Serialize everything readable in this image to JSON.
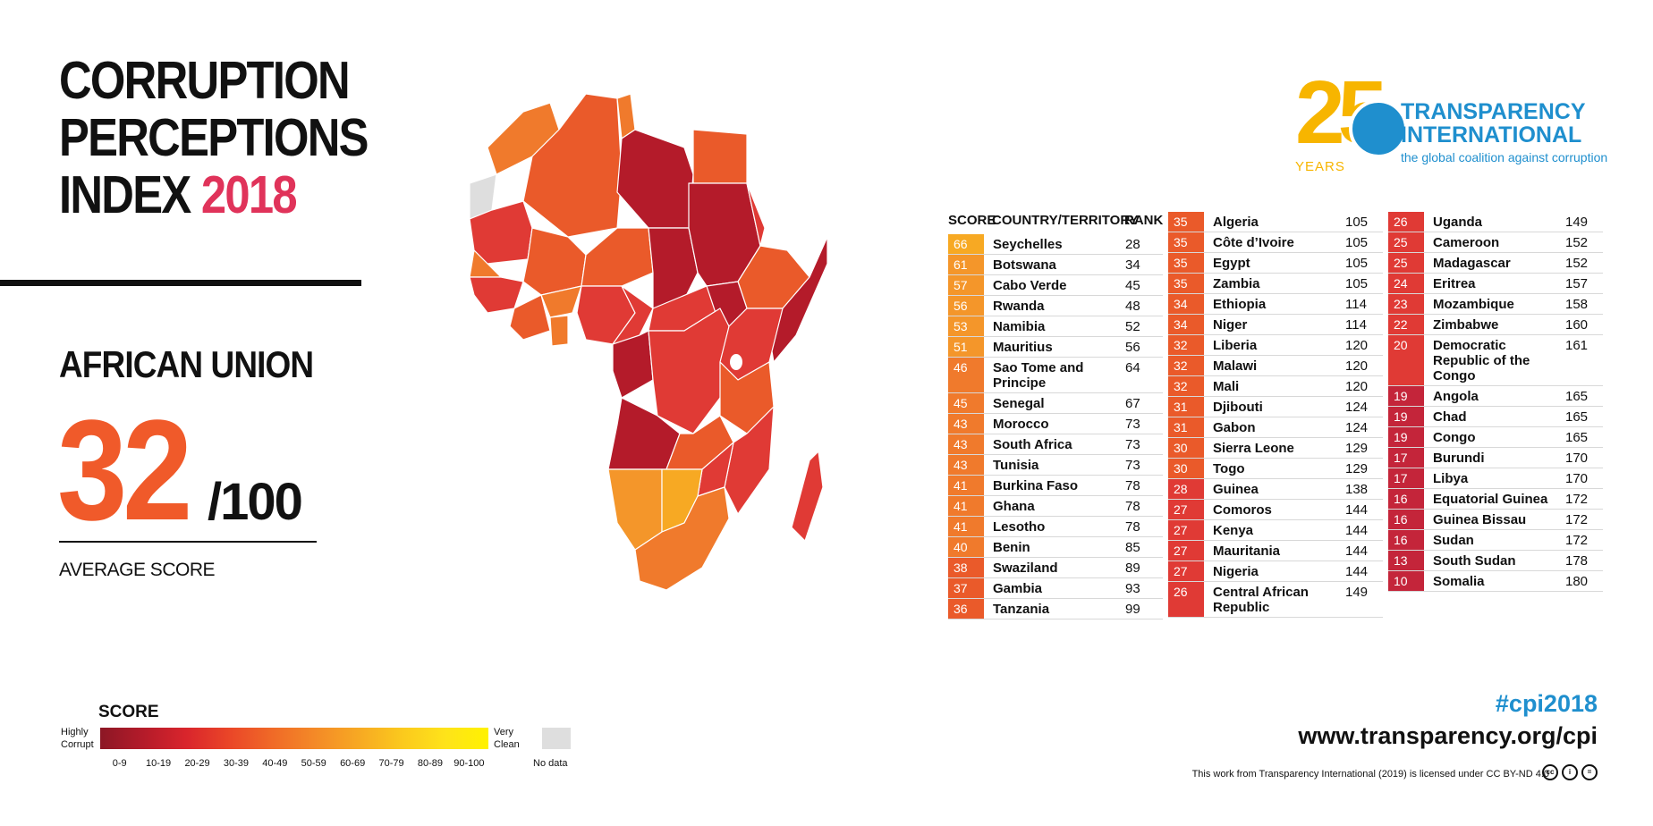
{
  "header": {
    "title_line1": "CORRUPTION",
    "title_line2": "PERCEPTIONS",
    "title_line3": "INDEX",
    "year": "2018"
  },
  "region": {
    "name": "AFRICAN UNION",
    "score": "32",
    "out_of": "/100",
    "label": "AVERAGE SCORE"
  },
  "logo": {
    "anniversary": "25",
    "years": "YEARS",
    "name_line1": "TRANSPARENCY",
    "name_line2": "INTERNATIONAL",
    "tagline": "the global coalition against corruption"
  },
  "table_headers": {
    "score": "SCORE",
    "country": "COUNTRY/TERRITORY",
    "rank": "RANK"
  },
  "table": {
    "columns": [
      [
        {
          "score": "66",
          "country": "Seychelles",
          "rank": "28",
          "color": "#f7a923"
        },
        {
          "score": "61",
          "country": "Botswana",
          "rank": "34",
          "color": "#f4962a"
        },
        {
          "score": "57",
          "country": "Cabo Verde",
          "rank": "45",
          "color": "#f4962a"
        },
        {
          "score": "56",
          "country": "Rwanda",
          "rank": "48",
          "color": "#f4962a"
        },
        {
          "score": "53",
          "country": "Namibia",
          "rank": "52",
          "color": "#f4962a"
        },
        {
          "score": "51",
          "country": "Mauritius",
          "rank": "56",
          "color": "#f4962a"
        },
        {
          "score": "46",
          "country": "Sao Tome and Principe",
          "rank": "64",
          "color": "#f07a2c"
        },
        {
          "score": "45",
          "country": "Senegal",
          "rank": "67",
          "color": "#f07a2c"
        },
        {
          "score": "43",
          "country": "Morocco",
          "rank": "73",
          "color": "#f07a2c"
        },
        {
          "score": "43",
          "country": "South Africa",
          "rank": "73",
          "color": "#f07a2c"
        },
        {
          "score": "43",
          "country": "Tunisia",
          "rank": "73",
          "color": "#f07a2c"
        },
        {
          "score": "41",
          "country": "Burkina Faso",
          "rank": "78",
          "color": "#f07a2c"
        },
        {
          "score": "41",
          "country": "Ghana",
          "rank": "78",
          "color": "#f07a2c"
        },
        {
          "score": "41",
          "country": "Lesotho",
          "rank": "78",
          "color": "#f07a2c"
        },
        {
          "score": "40",
          "country": "Benin",
          "rank": "85",
          "color": "#f07a2c"
        },
        {
          "score": "38",
          "country": "Swaziland",
          "rank": "89",
          "color": "#ea5a2a"
        },
        {
          "score": "37",
          "country": "Gambia",
          "rank": "93",
          "color": "#ea5a2a"
        },
        {
          "score": "36",
          "country": "Tanzania",
          "rank": "99",
          "color": "#ea5a2a"
        }
      ],
      [
        {
          "score": "35",
          "country": "Algeria",
          "rank": "105",
          "color": "#ea5a2a"
        },
        {
          "score": "35",
          "country": "Côte d’Ivoire",
          "rank": "105",
          "color": "#ea5a2a"
        },
        {
          "score": "35",
          "country": "Egypt",
          "rank": "105",
          "color": "#ea5a2a"
        },
        {
          "score": "35",
          "country": "Zambia",
          "rank": "105",
          "color": "#ea5a2a"
        },
        {
          "score": "34",
          "country": "Ethiopia",
          "rank": "114",
          "color": "#ea5a2a"
        },
        {
          "score": "34",
          "country": "Niger",
          "rank": "114",
          "color": "#ea5a2a"
        },
        {
          "score": "32",
          "country": "Liberia",
          "rank": "120",
          "color": "#ea5a2a"
        },
        {
          "score": "32",
          "country": "Malawi",
          "rank": "120",
          "color": "#ea5a2a"
        },
        {
          "score": "32",
          "country": "Mali",
          "rank": "120",
          "color": "#ea5a2a"
        },
        {
          "score": "31",
          "country": "Djibouti",
          "rank": "124",
          "color": "#ea5a2a"
        },
        {
          "score": "31",
          "country": "Gabon",
          "rank": "124",
          "color": "#ea5a2a"
        },
        {
          "score": "30",
          "country": "Sierra Leone",
          "rank": "129",
          "color": "#ea5a2a"
        },
        {
          "score": "30",
          "country": "Togo",
          "rank": "129",
          "color": "#ea5a2a"
        },
        {
          "score": "28",
          "country": "Guinea",
          "rank": "138",
          "color": "#e03a35"
        },
        {
          "score": "27",
          "country": "Comoros",
          "rank": "144",
          "color": "#e03a35"
        },
        {
          "score": "27",
          "country": "Kenya",
          "rank": "144",
          "color": "#e03a35"
        },
        {
          "score": "27",
          "country": "Mauritania",
          "rank": "144",
          "color": "#e03a35"
        },
        {
          "score": "27",
          "country": "Nigeria",
          "rank": "144",
          "color": "#e03a35"
        },
        {
          "score": "26",
          "country": "Central African Republic",
          "rank": "149",
          "color": "#e03a35"
        }
      ],
      [
        {
          "score": "26",
          "country": "Uganda",
          "rank": "149",
          "color": "#e03a35"
        },
        {
          "score": "25",
          "country": "Cameroon",
          "rank": "152",
          "color": "#e03a35"
        },
        {
          "score": "25",
          "country": "Madagascar",
          "rank": "152",
          "color": "#e03a35"
        },
        {
          "score": "24",
          "country": "Eritrea",
          "rank": "157",
          "color": "#e03a35"
        },
        {
          "score": "23",
          "country": "Mozambique",
          "rank": "158",
          "color": "#e03a35"
        },
        {
          "score": "22",
          "country": "Zimbabwe",
          "rank": "160",
          "color": "#e03a35"
        },
        {
          "score": "20",
          "country": "Democratic Republic of the Congo",
          "rank": "161",
          "color": "#e03a35"
        },
        {
          "score": "19",
          "country": "Angola",
          "rank": "165",
          "color": "#c4253a"
        },
        {
          "score": "19",
          "country": "Chad",
          "rank": "165",
          "color": "#c4253a"
        },
        {
          "score": "19",
          "country": "Congo",
          "rank": "165",
          "color": "#c4253a"
        },
        {
          "score": "17",
          "country": "Burundi",
          "rank": "170",
          "color": "#c4253a"
        },
        {
          "score": "17",
          "country": "Libya",
          "rank": "170",
          "color": "#c4253a"
        },
        {
          "score": "16",
          "country": "Equatorial Guinea",
          "rank": "172",
          "color": "#c4253a"
        },
        {
          "score": "16",
          "country": "Guinea Bissau",
          "rank": "172",
          "color": "#c4253a"
        },
        {
          "score": "16",
          "country": "Sudan",
          "rank": "172",
          "color": "#c4253a"
        },
        {
          "score": "13",
          "country": "South Sudan",
          "rank": "178",
          "color": "#c4253a"
        },
        {
          "score": "10",
          "country": "Somalia",
          "rank": "180",
          "color": "#c4253a"
        }
      ]
    ]
  },
  "legend": {
    "title": "SCORE",
    "left_label": "Highly Corrupt",
    "right_label": "Very Clean",
    "no_data": "No data",
    "ticks": [
      "0-9",
      "10-19",
      "20-29",
      "30-39",
      "40-49",
      "50-59",
      "60-69",
      "70-79",
      "80-89",
      "90-100"
    ]
  },
  "footer": {
    "hashtag": "#cpi2018",
    "url": "www.transparency.org/cpi",
    "license": "This work from Transparency International (2019) is licensed under CC BY-ND 4.0",
    "cc_icons": [
      "cc-icon",
      "by-icon",
      "nd-icon"
    ]
  }
}
